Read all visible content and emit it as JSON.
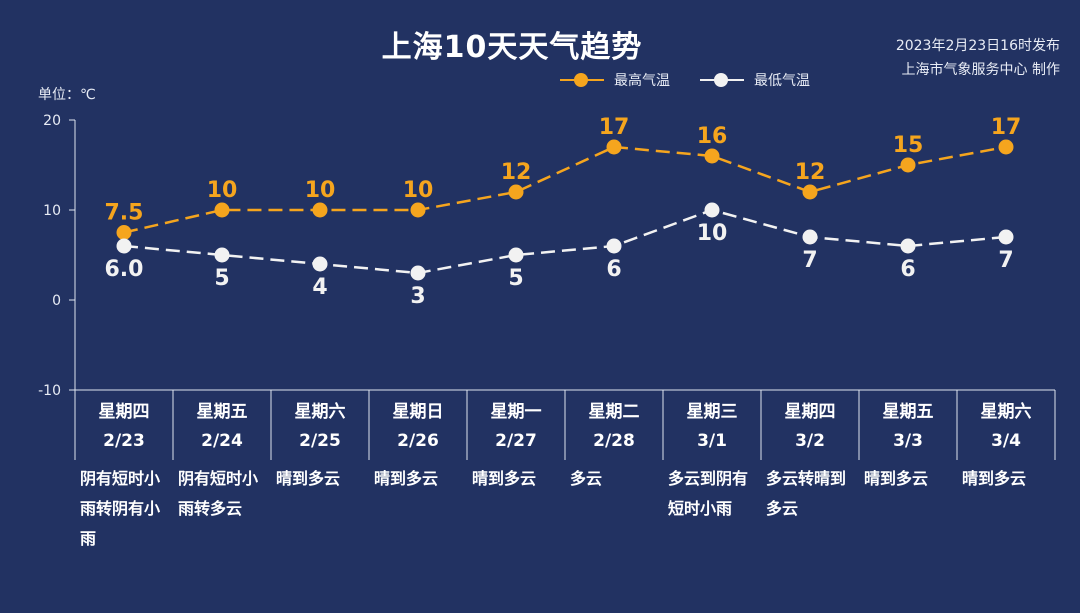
{
  "header": {
    "title": "上海10天天气趋势",
    "publish_line1": "2023年2月23日16时发布",
    "publish_line2": "上海市气象服务中心 制作",
    "unit": "单位：℃"
  },
  "legend": {
    "high_label": "最高气温",
    "low_label": "最低气温"
  },
  "chart_data": {
    "type": "line",
    "title": "上海10天天气趋势",
    "ylabel": "单位：℃",
    "ylim": [
      -10,
      20
    ],
    "yticks": [
      20,
      10,
      0,
      -10
    ],
    "categories": [
      "2/23",
      "2/24",
      "2/25",
      "2/26",
      "2/27",
      "2/28",
      "3/1",
      "3/2",
      "3/3",
      "3/4"
    ],
    "weekdays": [
      "星期四",
      "星期五",
      "星期六",
      "星期日",
      "星期一",
      "星期二",
      "星期三",
      "星期四",
      "星期五",
      "星期六"
    ],
    "weather": [
      "阴有短时小雨转阴有小雨",
      "阴有短时小雨转多云",
      "晴到多云",
      "晴到多云",
      "晴到多云",
      "多云",
      "多云到阴有短时小雨",
      "多云转晴到多云",
      "晴到多云",
      "晴到多云"
    ],
    "series": [
      {
        "name": "最高气温",
        "color": "#f5a51e",
        "values": [
          7.5,
          10,
          10,
          10,
          12,
          17,
          16,
          12,
          15,
          17
        ],
        "labels": [
          "7.5",
          "10",
          "10",
          "10",
          "12",
          "17",
          "16",
          "12",
          "15",
          "17"
        ]
      },
      {
        "name": "最低气温",
        "color": "#f2f2f2",
        "values": [
          6,
          5,
          4,
          3,
          5,
          6,
          10,
          7,
          6,
          7
        ],
        "labels": [
          "6.0",
          "5",
          "4",
          "3",
          "5",
          "6",
          "10",
          "7",
          "6",
          "7"
        ]
      }
    ],
    "legend_position": "top-right",
    "grid": false
  }
}
